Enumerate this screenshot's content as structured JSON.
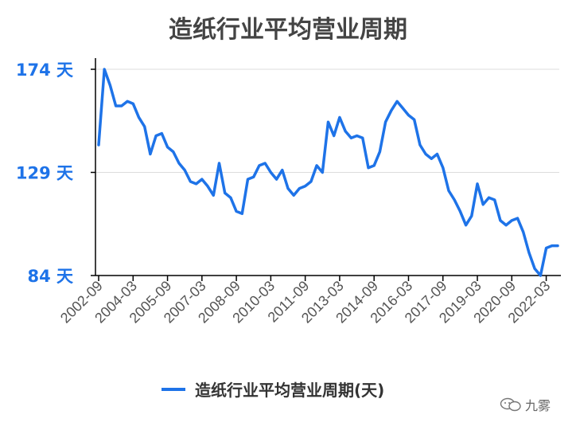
{
  "chart_data": {
    "type": "line",
    "title": "造纸行业平均营业周期",
    "ylim": [
      84,
      174
    ],
    "y_ticks": [
      {
        "value": 174,
        "label": "174 天"
      },
      {
        "value": 129,
        "label": "129 天"
      },
      {
        "value": 84,
        "label": "84 天"
      }
    ],
    "x_tick_labels": [
      "2002-09",
      "2004-03",
      "2005-09",
      "2007-03",
      "2008-09",
      "2010-03",
      "2011-09",
      "2013-03",
      "2014-09",
      "2016-03",
      "2017-09",
      "2019-03",
      "2020-09",
      "2022-03"
    ],
    "grid": true,
    "legend_position": "bottom",
    "series": [
      {
        "name": "造纸行业平均营业周期(天)",
        "color": "#1e73e8",
        "x": [
          "2002-09",
          "2002-12",
          "2003-03",
          "2003-06",
          "2003-09",
          "2003-12",
          "2004-03",
          "2004-06",
          "2004-09",
          "2004-12",
          "2005-03",
          "2005-06",
          "2005-09",
          "2005-12",
          "2006-03",
          "2006-06",
          "2006-09",
          "2006-12",
          "2007-03",
          "2007-06",
          "2007-09",
          "2007-12",
          "2008-03",
          "2008-06",
          "2008-09",
          "2008-12",
          "2009-03",
          "2009-06",
          "2009-09",
          "2009-12",
          "2010-03",
          "2010-06",
          "2010-09",
          "2010-12",
          "2011-03",
          "2011-06",
          "2011-09",
          "2011-12",
          "2012-03",
          "2012-06",
          "2012-09",
          "2012-12",
          "2013-03",
          "2013-06",
          "2013-09",
          "2013-12",
          "2014-03",
          "2014-06",
          "2014-09",
          "2014-12",
          "2015-03",
          "2015-06",
          "2015-09",
          "2015-12",
          "2016-03",
          "2016-06",
          "2016-09",
          "2016-12",
          "2017-03",
          "2017-06",
          "2017-09",
          "2017-12",
          "2018-03",
          "2018-06",
          "2018-09",
          "2018-12",
          "2019-03",
          "2019-06",
          "2019-09",
          "2019-12",
          "2020-03",
          "2020-06",
          "2020-09",
          "2020-12",
          "2021-03",
          "2021-06",
          "2021-09",
          "2021-12",
          "2022-03",
          "2022-06",
          "2022-09"
        ],
        "values": [
          141,
          174,
          167,
          158,
          158,
          160,
          159,
          153,
          149,
          137,
          145,
          146,
          140,
          138,
          133,
          130,
          125,
          124,
          126,
          123,
          119,
          133,
          120,
          118,
          112,
          111,
          126,
          127,
          132,
          133,
          129,
          126,
          130,
          122,
          119,
          122,
          123,
          125,
          132,
          129,
          151,
          145,
          153,
          147,
          144,
          145,
          144,
          131,
          132,
          138,
          151,
          156,
          160,
          157,
          154,
          152,
          141,
          137,
          135,
          137,
          131,
          121,
          117,
          112,
          106,
          110,
          124,
          115,
          118,
          117,
          108,
          106,
          108,
          109,
          103,
          94,
          87,
          84,
          96,
          97,
          97
        ]
      }
    ]
  },
  "legend_label": "造纸行业平均营业周期(天)",
  "watermark_text": "九雾"
}
